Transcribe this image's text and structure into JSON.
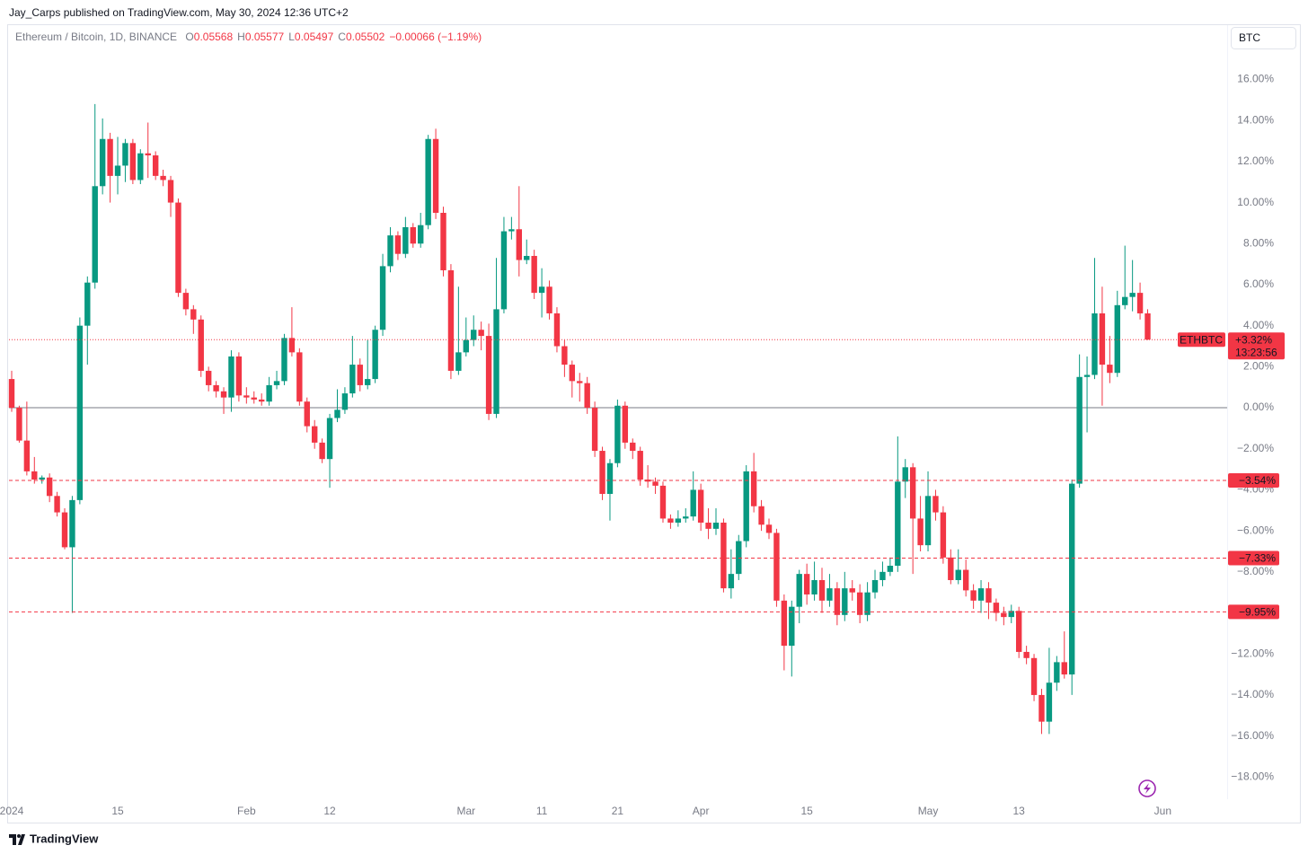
{
  "header": {
    "publisher": "Jay_Carps published on TradingView.com, May 30, 2024 12:36 UTC+2"
  },
  "symbol_button": "BTC",
  "brand": "TradingView",
  "chart_data": {
    "type": "candlestick",
    "title": "Ethereum / Bitcoin, 1D, BINANCE",
    "ohlc": [
      {
        "key": "O",
        "value": "0.05568"
      },
      {
        "key": "H",
        "value": "0.05577"
      },
      {
        "key": "L",
        "value": "0.05497"
      },
      {
        "key": "C",
        "value": "0.05502"
      }
    ],
    "change": "−0.00066 (−1.19%)",
    "up_color": "#089981",
    "down_color": "#f23645",
    "x": [
      "2024-01-01",
      "2024-01-02",
      "2024-01-03",
      "2024-01-04",
      "2024-01-05",
      "2024-01-06",
      "2024-01-07",
      "2024-01-08",
      "2024-01-09",
      "2024-01-10",
      "2024-01-11",
      "2024-01-12",
      "2024-01-13",
      "2024-01-14",
      "2024-01-15",
      "2024-01-16",
      "2024-01-17",
      "2024-01-18",
      "2024-01-19",
      "2024-01-20",
      "2024-01-21",
      "2024-01-22",
      "2024-01-23",
      "2024-01-24",
      "2024-01-25",
      "2024-01-26",
      "2024-01-27",
      "2024-01-28",
      "2024-01-29",
      "2024-01-30",
      "2024-01-31",
      "2024-02-01",
      "2024-02-02",
      "2024-02-03",
      "2024-02-04",
      "2024-02-05",
      "2024-02-06",
      "2024-02-07",
      "2024-02-08",
      "2024-02-09",
      "2024-02-10",
      "2024-02-11",
      "2024-02-12",
      "2024-02-13",
      "2024-02-14",
      "2024-02-15",
      "2024-02-16",
      "2024-02-17",
      "2024-02-18",
      "2024-02-19",
      "2024-02-20",
      "2024-02-21",
      "2024-02-22",
      "2024-02-23",
      "2024-02-24",
      "2024-02-25",
      "2024-02-26",
      "2024-02-27",
      "2024-02-28",
      "2024-02-29",
      "2024-03-01",
      "2024-03-02",
      "2024-03-03",
      "2024-03-04",
      "2024-03-05",
      "2024-03-06",
      "2024-03-07",
      "2024-03-08",
      "2024-03-09",
      "2024-03-10",
      "2024-03-11",
      "2024-03-12",
      "2024-03-13",
      "2024-03-14",
      "2024-03-15",
      "2024-03-16",
      "2024-03-17",
      "2024-03-18",
      "2024-03-19",
      "2024-03-20",
      "2024-03-21",
      "2024-03-22",
      "2024-03-23",
      "2024-03-24",
      "2024-03-25",
      "2024-03-26",
      "2024-03-27",
      "2024-03-28",
      "2024-03-29",
      "2024-03-30",
      "2024-03-31",
      "2024-04-01",
      "2024-04-02",
      "2024-04-03",
      "2024-04-04",
      "2024-04-05",
      "2024-04-06",
      "2024-04-07",
      "2024-04-08",
      "2024-04-09",
      "2024-04-10",
      "2024-04-11",
      "2024-04-12",
      "2024-04-13",
      "2024-04-14",
      "2024-04-15",
      "2024-04-16",
      "2024-04-17",
      "2024-04-18",
      "2024-04-19",
      "2024-04-20",
      "2024-04-21",
      "2024-04-22",
      "2024-04-23",
      "2024-04-24",
      "2024-04-25",
      "2024-04-26",
      "2024-04-27",
      "2024-04-28",
      "2024-04-29",
      "2024-04-30",
      "2024-05-01",
      "2024-05-02",
      "2024-05-03",
      "2024-05-04",
      "2024-05-05",
      "2024-05-06",
      "2024-05-07",
      "2024-05-08",
      "2024-05-09",
      "2024-05-10",
      "2024-05-11",
      "2024-05-12",
      "2024-05-13",
      "2024-05-14",
      "2024-05-15",
      "2024-05-16",
      "2024-05-17",
      "2024-05-18",
      "2024-05-19",
      "2024-05-20",
      "2024-05-21",
      "2024-05-22",
      "2024-05-23",
      "2024-05-24",
      "2024-05-25",
      "2024-05-26",
      "2024-05-27",
      "2024-05-28",
      "2024-05-29",
      "2024-05-30"
    ],
    "open": [
      1.4,
      0.0,
      -1.6,
      -3.1,
      -3.5,
      -3.4,
      -4.3,
      -5.1,
      -6.8,
      -4.5,
      4.0,
      6.1,
      10.8,
      13.1,
      11.3,
      11.8,
      12.9,
      11.1,
      12.4,
      12.3,
      11.3,
      11.1,
      10.0,
      5.6,
      4.8,
      4.3,
      1.8,
      1.1,
      0.8,
      0.5,
      2.5,
      0.6,
      0.5,
      0.4,
      0.3,
      1.1,
      1.3,
      3.4,
      2.7,
      0.3,
      -0.9,
      -1.7,
      -2.5,
      -0.5,
      -0.1,
      0.7,
      2.1,
      1.1,
      1.4,
      3.8,
      6.9,
      8.4,
      7.5,
      8.8,
      8.0,
      8.9,
      13.1,
      9.5,
      6.7,
      1.8,
      2.7,
      3.3,
      3.8,
      3.5,
      -0.3,
      4.8,
      8.6,
      8.7,
      7.2,
      7.4,
      5.6,
      5.9,
      4.6,
      3.0,
      2.1,
      1.3,
      1.2,
      0.0,
      -2.1,
      -4.2,
      -2.7,
      0.1,
      -1.7,
      -2.1,
      -3.5,
      -3.6,
      -3.8,
      -5.4,
      -5.6,
      -5.4,
      -5.3,
      -4.0,
      -5.6,
      -5.9,
      -5.6,
      -8.8,
      -8.1,
      -6.5,
      -3.1,
      -4.8,
      -5.7,
      -6.1,
      -9.4,
      -11.6,
      -9.7,
      -8.1,
      -9.1,
      -8.4,
      -9.4,
      -8.8,
      -10.1,
      -8.8,
      -9.0,
      -10.1,
      -9.0,
      -8.4,
      -8.0,
      -7.7,
      -3.6,
      -2.9,
      -5.4,
      -6.7,
      -4.3,
      -5.1,
      -7.3,
      -8.4,
      -7.9,
      -8.9,
      -9.4,
      -8.8,
      -9.5,
      -10.0,
      -10.2,
      -9.9,
      -11.9,
      -12.2,
      -14.0,
      -15.3,
      -13.4,
      -12.4,
      -13.0,
      -3.7,
      1.5,
      1.6,
      4.6,
      2.1,
      1.7,
      5.0,
      5.4,
      5.6,
      4.6
    ],
    "high": [
      1.8,
      0.1,
      0.3,
      -2.4,
      -3.3,
      -3.2,
      -4.1,
      -4.9,
      -4.3,
      4.4,
      6.4,
      14.8,
      14.1,
      13.4,
      13.2,
      13.1,
      13.1,
      12.6,
      13.9,
      12.5,
      11.6,
      11.3,
      10.2,
      5.8,
      5.0,
      4.5,
      2.0,
      1.3,
      1.0,
      2.8,
      2.7,
      1.0,
      0.8,
      0.7,
      1.5,
      1.8,
      3.6,
      4.9,
      2.9,
      0.5,
      -0.6,
      -1.5,
      -0.3,
      0.9,
      1.0,
      3.5,
      2.4,
      3.3,
      4.0,
      7.5,
      8.8,
      8.6,
      9.3,
      9.0,
      9.5,
      13.3,
      13.6,
      9.8,
      7.0,
      5.9,
      4.4,
      4.5,
      4.2,
      4.1,
      7.3,
      9.3,
      9.3,
      10.8,
      8.2,
      7.7,
      6.8,
      6.2,
      4.9,
      3.3,
      2.3,
      1.7,
      1.5,
      0.3,
      -1.9,
      -2.5,
      0.4,
      0.3,
      -1.5,
      -1.9,
      -2.8,
      -3.4,
      -3.6,
      -5.2,
      -5.0,
      -4.9,
      -3.1,
      -3.7,
      -4.9,
      -4.9,
      -5.4,
      -6.9,
      -6.2,
      -2.8,
      -2.2,
      -4.5,
      -5.4,
      -5.9,
      -9.1,
      -9.4,
      -7.9,
      -7.6,
      -7.5,
      -7.8,
      -8.1,
      -8.5,
      -8.0,
      -8.4,
      -8.6,
      -8.5,
      -7.9,
      -7.5,
      -7.3,
      -1.4,
      -2.5,
      -2.7,
      -4.3,
      -3.1,
      -4.0,
      -4.8,
      -6.9,
      -6.9,
      -7.4,
      -8.6,
      -8.4,
      -8.5,
      -9.3,
      -9.7,
      -9.6,
      -9.7,
      -11.6,
      -12.0,
      -13.7,
      -11.7,
      -12.1,
      -10.9,
      -3.5,
      2.6,
      2.5,
      7.3,
      5.9,
      3.5,
      5.7,
      7.9,
      7.2,
      6.1,
      4.8
    ],
    "low": [
      -0.2,
      -1.7,
      -3.3,
      -3.7,
      -3.7,
      -4.6,
      -5.3,
      -6.9,
      -10.0,
      -4.7,
      2.1,
      5.8,
      10.4,
      10.0,
      10.4,
      11.0,
      10.9,
      10.9,
      11.2,
      11.1,
      10.8,
      9.3,
      5.4,
      4.5,
      3.6,
      1.5,
      0.8,
      0.5,
      -0.3,
      -0.2,
      0.3,
      0.2,
      0.2,
      0.1,
      0.1,
      0.9,
      1.1,
      2.5,
      0.1,
      -1.2,
      -2.0,
      -2.7,
      -3.9,
      -0.7,
      -0.3,
      0.5,
      0.8,
      0.9,
      1.2,
      3.5,
      6.6,
      7.2,
      7.3,
      7.8,
      7.8,
      8.7,
      9.2,
      6.4,
      1.4,
      1.6,
      2.5,
      3.0,
      2.8,
      -0.6,
      -0.5,
      4.6,
      8.2,
      6.4,
      7.0,
      5.3,
      4.4,
      4.3,
      2.7,
      1.5,
      0.5,
      0.3,
      -0.3,
      -2.4,
      -4.5,
      -5.5,
      -2.9,
      -2.0,
      -2.5,
      -3.8,
      -3.9,
      -4.2,
      -5.6,
      -5.9,
      -5.8,
      -5.6,
      -5.5,
      -6.0,
      -6.4,
      -6.2,
      -9.0,
      -9.3,
      -8.4,
      -6.8,
      -5.1,
      -6.0,
      -6.4,
      -9.7,
      -12.8,
      -13.1,
      -10.5,
      -9.6,
      -9.4,
      -10.0,
      -9.7,
      -10.6,
      -10.4,
      -9.4,
      -10.5,
      -10.4,
      -9.3,
      -8.7,
      -8.2,
      -8.0,
      -4.4,
      -8.1,
      -7.0,
      -7.0,
      -5.5,
      -7.6,
      -8.6,
      -8.6,
      -9.2,
      -9.8,
      -10.0,
      -10.3,
      -10.4,
      -10.6,
      -10.5,
      -12.2,
      -12.5,
      -14.3,
      -15.9,
      -15.9,
      -13.8,
      -13.2,
      -14.0,
      -3.9,
      -1.2,
      1.4,
      0.1,
      1.2,
      1.5,
      4.8,
      4.7,
      4.3,
      3.3
    ],
    "close": [
      0.0,
      -1.6,
      -3.1,
      -3.5,
      -3.4,
      -4.3,
      -5.1,
      -6.8,
      -4.5,
      4.0,
      6.1,
      10.8,
      13.1,
      11.3,
      11.8,
      12.9,
      11.1,
      12.4,
      12.3,
      11.3,
      11.1,
      10.0,
      5.6,
      4.8,
      4.3,
      1.8,
      1.1,
      0.8,
      0.5,
      2.5,
      0.6,
      0.5,
      0.4,
      0.3,
      1.1,
      1.3,
      3.4,
      2.7,
      0.3,
      -0.9,
      -1.7,
      -2.5,
      -0.5,
      -0.1,
      0.7,
      2.1,
      1.1,
      1.4,
      3.8,
      6.9,
      8.4,
      7.5,
      8.8,
      8.0,
      8.9,
      13.1,
      9.5,
      6.7,
      1.8,
      2.7,
      3.3,
      3.8,
      3.5,
      -0.3,
      4.8,
      8.6,
      8.7,
      7.2,
      7.4,
      5.6,
      5.9,
      4.6,
      3.0,
      2.1,
      1.3,
      1.2,
      0.0,
      -2.1,
      -4.2,
      -2.7,
      0.1,
      -1.7,
      -2.1,
      -3.5,
      -3.6,
      -3.8,
      -5.4,
      -5.6,
      -5.4,
      -5.3,
      -4.0,
      -5.6,
      -5.9,
      -5.6,
      -8.8,
      -8.1,
      -6.5,
      -3.1,
      -4.8,
      -5.7,
      -6.1,
      -9.4,
      -11.6,
      -9.7,
      -8.1,
      -9.1,
      -8.4,
      -9.4,
      -8.8,
      -10.1,
      -8.8,
      -9.0,
      -10.1,
      -9.0,
      -8.4,
      -8.0,
      -7.7,
      -3.6,
      -2.9,
      -5.4,
      -6.7,
      -4.3,
      -5.1,
      -7.3,
      -8.4,
      -7.9,
      -8.9,
      -9.4,
      -8.8,
      -9.5,
      -10.0,
      -10.2,
      -9.9,
      -11.9,
      -12.2,
      -14.0,
      -15.3,
      -13.4,
      -12.4,
      -13.0,
      -3.7,
      1.5,
      1.6,
      4.6,
      2.1,
      1.7,
      5.0,
      5.4,
      5.6,
      4.6,
      3.32
    ],
    "xlim": [
      "2023-12-31",
      "2024-06-09"
    ],
    "xticks": [
      {
        "value": "2024-01-01",
        "label": "2024"
      },
      {
        "value": "2024-01-15",
        "label": "15"
      },
      {
        "value": "2024-02-01",
        "label": "Feb"
      },
      {
        "value": "2024-02-12",
        "label": "12"
      },
      {
        "value": "2024-03-01",
        "label": "Mar"
      },
      {
        "value": "2024-03-11",
        "label": "11"
      },
      {
        "value": "2024-03-21",
        "label": "21"
      },
      {
        "value": "2024-04-01",
        "label": "Apr"
      },
      {
        "value": "2024-04-15",
        "label": "15"
      },
      {
        "value": "2024-05-01",
        "label": "May"
      },
      {
        "value": "2024-05-13",
        "label": "13"
      },
      {
        "value": "2024-06-01",
        "label": "Jun"
      }
    ],
    "ylim": [
      -19.08,
      18.56
    ],
    "yticks": [
      {
        "value": 16,
        "label": "16.00%"
      },
      {
        "value": 14,
        "label": "14.00%"
      },
      {
        "value": 12,
        "label": "12.00%"
      },
      {
        "value": 10,
        "label": "10.00%"
      },
      {
        "value": 8,
        "label": "8.00%"
      },
      {
        "value": 6,
        "label": "6.00%"
      },
      {
        "value": 4,
        "label": "4.00%"
      },
      {
        "value": 2,
        "label": "2.00%"
      },
      {
        "value": 0,
        "label": "0.00%"
      },
      {
        "value": -2,
        "label": "−2.00%"
      },
      {
        "value": -4,
        "label": "−4.00%"
      },
      {
        "value": -6,
        "label": "−6.00%"
      },
      {
        "value": -8,
        "label": "−8.00%"
      },
      {
        "value": -10,
        "label": "−10.00%"
      },
      {
        "value": -12,
        "label": "−12.00%"
      },
      {
        "value": -14,
        "label": "−14.00%"
      },
      {
        "value": -16,
        "label": "−16.00%"
      },
      {
        "value": -18,
        "label": "−18.00%"
      }
    ],
    "zero_line": true,
    "levels": [
      {
        "value": -3.54,
        "label": "−3.54%"
      },
      {
        "value": -7.33,
        "label": "−7.33%"
      },
      {
        "value": -9.95,
        "label": "−9.95%"
      }
    ],
    "last": {
      "name": "ETHBTC",
      "value": 3.32,
      "label": "+3.32%",
      "countdown": "13:23:56"
    }
  }
}
